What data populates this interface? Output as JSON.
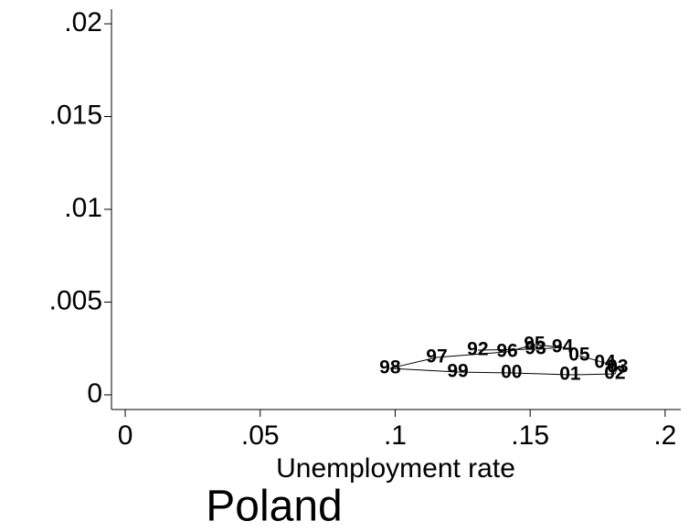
{
  "chart_data": {
    "type": "line",
    "title": "Poland",
    "x_label": "Unemployment rate",
    "series": [
      {
        "color": "#000000",
        "labels": [
          "92",
          "93",
          "94",
          "95",
          "96",
          "97",
          "98",
          "99",
          "00",
          "01",
          "02",
          "03",
          "04",
          "05"
        ],
        "x": [
          0.1306,
          0.152,
          0.162,
          0.1516,
          0.1415,
          0.1154,
          0.0981,
          0.1232,
          0.1431,
          0.1648,
          0.1814,
          0.1824,
          0.1777,
          0.1682
        ],
        "values": [
          0.00241,
          0.00246,
          0.00256,
          0.00271,
          0.00232,
          0.00202,
          0.00143,
          0.00123,
          0.00118,
          0.00108,
          0.00113,
          0.00148,
          0.00172,
          0.00212
        ]
      }
    ],
    "xlim": [
      -0.0051,
      0.2058
    ],
    "ylim": [
      -0.00079,
      0.02079
    ],
    "xticks": [
      0,
      {
        "value": 0.05,
        "label": ".05"
      },
      {
        "value": 0.1,
        "label": ".1"
      },
      {
        "value": 0.15,
        "label": ".15"
      },
      {
        "value": 0.2,
        "label": ".2"
      }
    ],
    "yticks": [
      0,
      {
        "value": 0.005,
        "label": ".005"
      },
      {
        "value": 0.01,
        "label": ".01"
      },
      {
        "value": 0.015,
        "label": ".015"
      },
      {
        "value": 0.02,
        "label": ".02"
      }
    ]
  }
}
